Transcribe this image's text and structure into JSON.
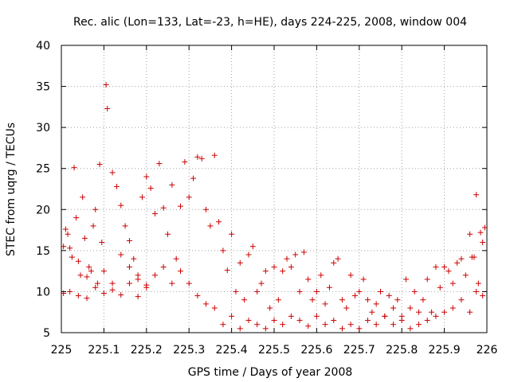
{
  "chart_data": {
    "type": "scatter",
    "title": "Rec. alic (Lon=133, Lat=-23, h=HE), days 224-225, 2008, window 004",
    "xlabel": "GPS time / Days of year 2008",
    "ylabel": "STEC from uqrg / TECUs",
    "xlim": [
      225,
      226
    ],
    "ylim": [
      5,
      40
    ],
    "xticks": [
      225,
      225.1,
      225.2,
      225.3,
      225.4,
      225.5,
      225.6,
      225.7,
      225.8,
      225.9,
      226
    ],
    "xtick_labels": [
      "225",
      "225.1",
      "225.2",
      "225.3",
      "225.4",
      "225.5",
      "225.6",
      "225.7",
      "225.8",
      "225.9",
      "226"
    ],
    "yticks": [
      5,
      10,
      15,
      20,
      25,
      30,
      35,
      40
    ],
    "ytick_labels": [
      "5",
      "10",
      "15",
      "20",
      "25",
      "30",
      "35",
      "40"
    ],
    "grid": true,
    "marker": "+",
    "color": "#cc0000",
    "series": [
      {
        "name": "STEC",
        "x": [
          225.005,
          225.01,
          225.02,
          225.03,
          225.04,
          225.05,
          225.06,
          225.07,
          225.08,
          225.09,
          225.005,
          225.015,
          225.025,
          225.035,
          225.045,
          225.055,
          225.065,
          225.075,
          225.085,
          225.095,
          225.02,
          225.04,
          225.06,
          225.08,
          225.1,
          225.12,
          225.14,
          225.16,
          225.18,
          225.2,
          225.105,
          225.108,
          225.12,
          225.13,
          225.14,
          225.15,
          225.16,
          225.17,
          225.18,
          225.19,
          225.2,
          225.21,
          225.22,
          225.23,
          225.24,
          225.25,
          225.26,
          225.27,
          225.28,
          225.29,
          225.3,
          225.31,
          225.32,
          225.33,
          225.34,
          225.35,
          225.36,
          225.37,
          225.38,
          225.39,
          225.4,
          225.41,
          225.42,
          225.43,
          225.44,
          225.45,
          225.46,
          225.47,
          225.48,
          225.49,
          225.5,
          225.51,
          225.52,
          225.53,
          225.54,
          225.55,
          225.56,
          225.57,
          225.58,
          225.59,
          225.6,
          225.61,
          225.62,
          225.63,
          225.64,
          225.65,
          225.66,
          225.67,
          225.68,
          225.69,
          225.7,
          225.71,
          225.72,
          225.73,
          225.74,
          225.75,
          225.76,
          225.77,
          225.78,
          225.79,
          225.8,
          225.81,
          225.82,
          225.83,
          225.84,
          225.85,
          225.86,
          225.87,
          225.88,
          225.89,
          225.9,
          225.91,
          225.92,
          225.93,
          225.94,
          225.95,
          225.96,
          225.97,
          225.98,
          225.99,
          225.1,
          225.12,
          225.14,
          225.16,
          225.18,
          225.2,
          225.22,
          225.24,
          225.26,
          225.28,
          225.3,
          225.32,
          225.34,
          225.36,
          225.38,
          225.4,
          225.42,
          225.44,
          225.46,
          225.48,
          225.5,
          225.52,
          225.54,
          225.56,
          225.58,
          225.6,
          225.62,
          225.64,
          225.66,
          225.68,
          225.7,
          225.72,
          225.74,
          225.76,
          225.78,
          225.8,
          225.82,
          225.84,
          225.86,
          225.88,
          225.9,
          225.92,
          225.94,
          225.96,
          225.975,
          225.985,
          225.995,
          225.965,
          225.975,
          225.99
        ],
        "y": [
          9.8,
          17.6,
          15.3,
          25.1,
          13.7,
          21.5,
          11.8,
          12.5,
          20.0,
          25.5,
          15.5,
          17.0,
          14.2,
          19.0,
          12.0,
          16.5,
          13.0,
          18.0,
          11.0,
          16.0,
          10.0,
          9.5,
          9.2,
          10.5,
          9.8,
          10.2,
          9.6,
          11.0,
          9.4,
          10.8,
          35.2,
          32.3,
          24.5,
          22.8,
          20.5,
          18.0,
          16.2,
          14.0,
          12.0,
          21.5,
          24.0,
          22.6,
          19.5,
          25.6,
          20.2,
          17.0,
          23.0,
          14.0,
          20.4,
          25.8,
          21.5,
          23.8,
          26.4,
          26.2,
          20.0,
          18.0,
          26.6,
          18.5,
          15.0,
          12.6,
          17.0,
          10.0,
          13.5,
          9.0,
          14.5,
          15.5,
          10.0,
          11.0,
          12.5,
          8.0,
          13.0,
          9.0,
          12.5,
          14.0,
          13.0,
          14.5,
          10.0,
          14.8,
          11.5,
          9.0,
          10.0,
          12.0,
          8.5,
          10.5,
          13.5,
          14.0,
          9.0,
          8.0,
          12.0,
          9.5,
          10.0,
          11.5,
          9.0,
          7.5,
          8.5,
          10.0,
          7.0,
          9.5,
          8.0,
          9.0,
          7.0,
          11.5,
          8.0,
          10.0,
          7.5,
          9.0,
          11.5,
          7.5,
          13.0,
          10.5,
          13.0,
          12.5,
          11.0,
          13.5,
          14.0,
          12.0,
          17.0,
          14.2,
          11.0,
          16.0,
          12.5,
          11.0,
          14.5,
          13.0,
          11.5,
          10.5,
          12.0,
          13.0,
          11.0,
          12.5,
          11.0,
          9.5,
          8.5,
          8.0,
          6.0,
          7.0,
          5.5,
          6.5,
          6.0,
          5.5,
          6.5,
          6.0,
          7.0,
          6.5,
          5.8,
          7.0,
          6.0,
          6.5,
          5.5,
          6.0,
          5.5,
          6.5,
          6.0,
          7.0,
          6.0,
          6.5,
          5.5,
          6.0,
          6.5,
          7.0,
          7.5,
          8.0,
          9.0,
          7.5,
          21.8,
          17.2,
          17.8,
          14.2,
          10.0,
          9.5
        ]
      }
    ]
  }
}
